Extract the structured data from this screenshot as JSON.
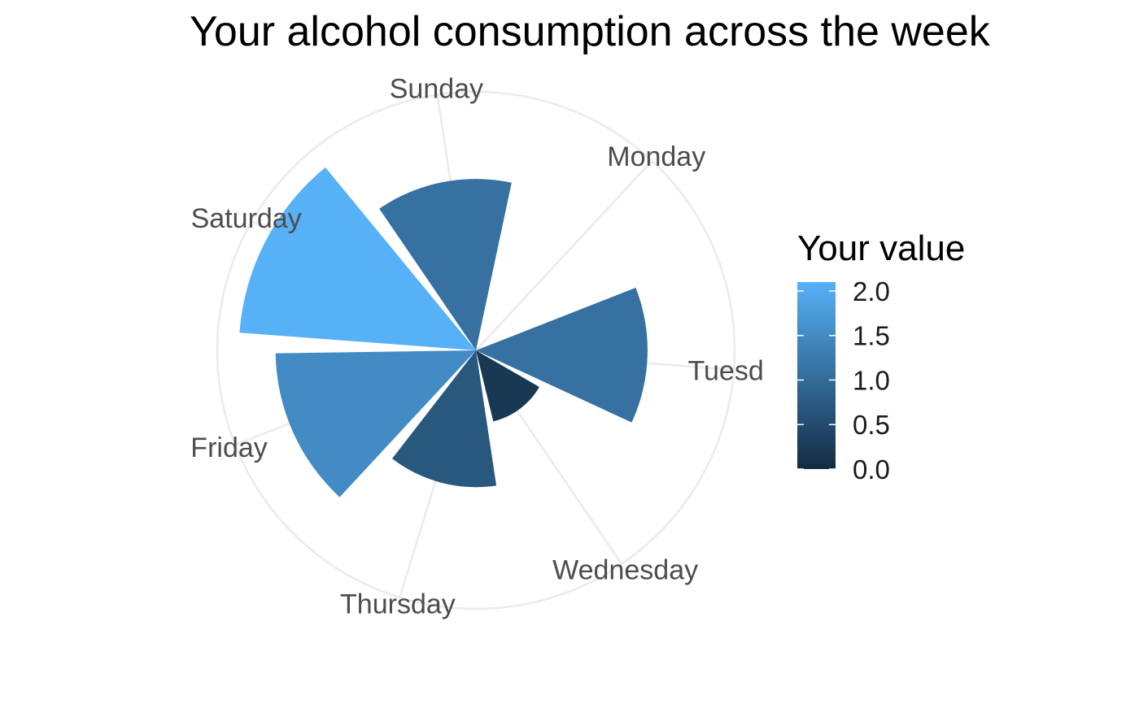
{
  "chart_data": {
    "type": "polar-bar",
    "title": "Your alcohol consumption across the week",
    "categories": [
      "Monday",
      "Tuesday",
      "Wednesday",
      "Thursday",
      "Friday",
      "Saturday",
      "Sunday"
    ],
    "values": [
      0.0,
      1.1,
      0.2,
      0.7,
      1.5,
      2.1,
      1.1
    ],
    "ylim": [
      0,
      2.5
    ],
    "grid": true,
    "legend": {
      "title": "Your value",
      "placement": "right",
      "ticks": [
        "0.0",
        "0.5",
        "1.0",
        "1.5",
        "2.0"
      ],
      "tick_values": [
        0.0,
        0.5,
        1.0,
        1.5,
        2.0
      ],
      "range": [
        0.0,
        2.1
      ]
    },
    "colors": {
      "low": "#132b43",
      "high": "#56b1f7"
    }
  }
}
